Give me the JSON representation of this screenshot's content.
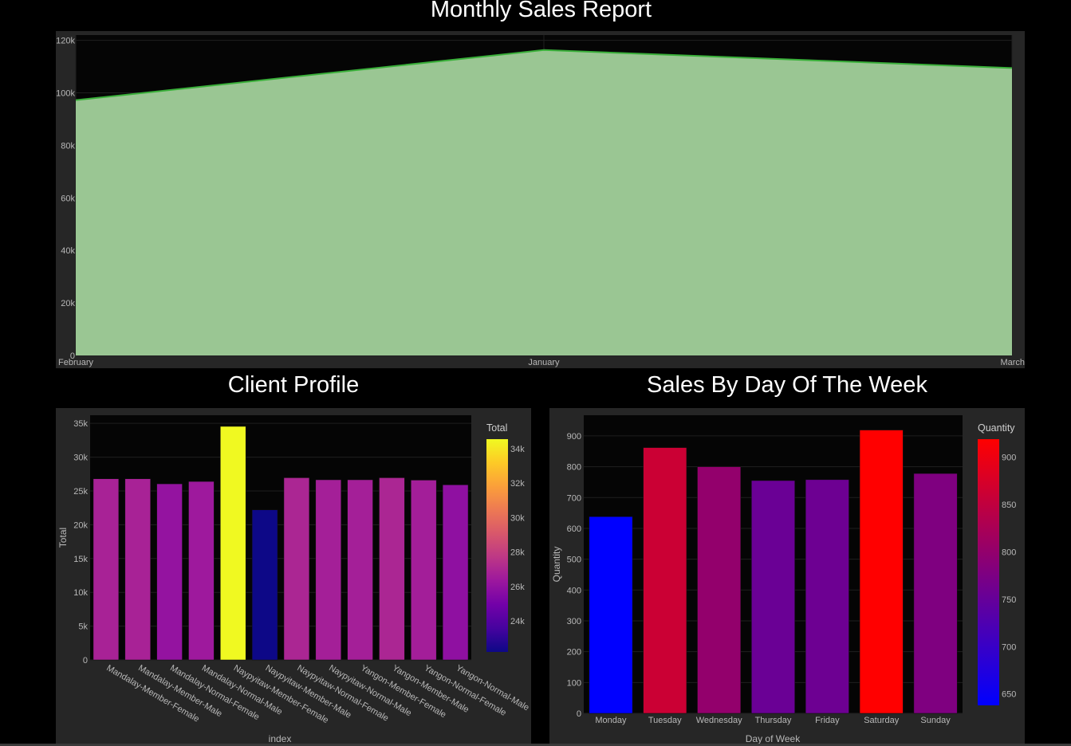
{
  "page": {
    "monthly_title": "Monthly Sales Report",
    "client_title": "Client Profile",
    "weekday_title": "Sales By Day Of The Week"
  },
  "chart_data": [
    {
      "id": "monthly",
      "type": "area",
      "title": "Monthly Sales Report",
      "x": [
        "February",
        "January",
        "March"
      ],
      "y": [
        97219,
        116292,
        109456
      ],
      "xlabel": "",
      "ylabel": "",
      "ylim": [
        0,
        122000
      ],
      "yticks": [
        0,
        20000,
        40000,
        60000,
        80000,
        100000,
        120000
      ],
      "ytick_labels": [
        "0",
        "20k",
        "40k",
        "60k",
        "80k",
        "100k",
        "120k"
      ],
      "line_color": "#3ab03a",
      "fill_color": "#9ac693",
      "grid": true
    },
    {
      "id": "client",
      "type": "bar",
      "title": "Client Profile",
      "categories": [
        "Mandalay-Member-Female",
        "Mandalay-Member-Male",
        "Mandalay-Normal-Female",
        "Mandalay-Normal-Male",
        "Naypyitaw-Member-Female",
        "Naypyitaw-Member-Male",
        "Naypyitaw-Normal-Female",
        "Naypyitaw-Normal-Male",
        "Yangon-Member-Female",
        "Yangon-Member-Male",
        "Yangon-Normal-Female",
        "Yangon-Normal-Male"
      ],
      "values": [
        26800,
        26800,
        26050,
        26400,
        34550,
        22200,
        26950,
        26650,
        26650,
        26950,
        26600,
        25900
      ],
      "xlabel": "index",
      "ylabel": "Total",
      "ylim": [
        0,
        36200
      ],
      "yticks": [
        0,
        5000,
        10000,
        15000,
        20000,
        25000,
        30000,
        35000
      ],
      "ytick_labels": [
        "0",
        "5k",
        "10k",
        "15k",
        "20k",
        "25k",
        "30k",
        "35k"
      ],
      "colorbar": {
        "title": "Total",
        "range": [
          22200,
          34550
        ],
        "ticks": [
          24000,
          26000,
          28000,
          30000,
          32000,
          34000
        ],
        "tick_labels": [
          "24k",
          "26k",
          "28k",
          "30k",
          "32k",
          "34k"
        ],
        "colorscale": [
          "#0d0887",
          "#46039f",
          "#7201a8",
          "#9c179e",
          "#bd3786",
          "#d8576b",
          "#ed7953",
          "#fb9f3a",
          "#fdca26",
          "#f0f921"
        ]
      },
      "grid": true,
      "legend": "right"
    },
    {
      "id": "weekday",
      "type": "bar",
      "title": "Sales By Day Of The Week",
      "categories": [
        "Monday",
        "Tuesday",
        "Wednesday",
        "Thursday",
        "Friday",
        "Saturday",
        "Sunday"
      ],
      "values": [
        638,
        862,
        800,
        755,
        758,
        919,
        778
      ],
      "xlabel": "Day of Week",
      "ylabel": "Quantity",
      "ylim": [
        0,
        967
      ],
      "yticks": [
        0,
        100,
        200,
        300,
        400,
        500,
        600,
        700,
        800,
        900
      ],
      "ytick_labels": [
        "0",
        "100",
        "200",
        "300",
        "400",
        "500",
        "600",
        "700",
        "800",
        "900"
      ],
      "colorbar": {
        "title": "Quantity",
        "range": [
          638,
          919
        ],
        "ticks": [
          650,
          700,
          750,
          800,
          850,
          900
        ],
        "tick_labels": [
          "650",
          "700",
          "750",
          "800",
          "850",
          "900"
        ],
        "colorscale": [
          "#0000ff",
          "#ff0000"
        ]
      },
      "grid": true,
      "legend": "right"
    }
  ]
}
